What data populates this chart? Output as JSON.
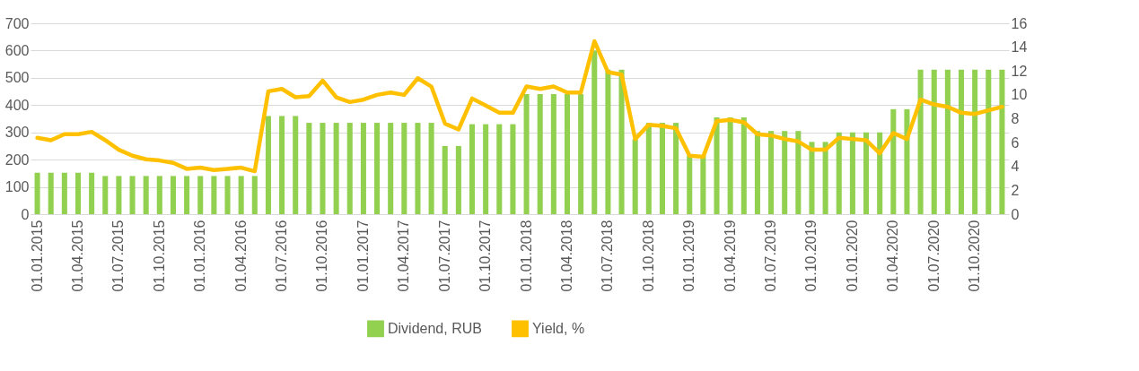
{
  "chart_data": {
    "type": "bar",
    "categories": [
      "01.01.2015",
      null,
      null,
      "01.04.2015",
      null,
      null,
      "01.07.2015",
      null,
      null,
      "01.10.2015",
      null,
      null,
      "01.01.2016",
      null,
      null,
      "01.04.2016",
      null,
      null,
      "01.07.2016",
      null,
      null,
      "01.10.2016",
      null,
      null,
      "01.01.2017",
      null,
      null,
      "01.04.2017",
      null,
      null,
      "01.07.2017",
      null,
      null,
      "01.10.2017",
      null,
      null,
      "01.01.2018",
      null,
      null,
      "01.04.2018",
      null,
      null,
      "01.07.2018",
      null,
      null,
      "01.10.2018",
      null,
      null,
      "01.01.2019",
      null,
      null,
      "01.04.2019",
      null,
      null,
      "01.07.2019",
      null,
      null,
      "01.10.2019",
      null,
      null,
      "01.01.2020",
      null,
      null,
      "01.04.2020",
      null,
      null,
      "01.07.2020",
      null,
      null,
      "01.10.2020",
      null,
      null
    ],
    "series": [
      {
        "name": "Dividend, RUB",
        "color": "#92d050",
        "values": [
          152,
          152,
          152,
          152,
          152,
          140,
          140,
          140,
          140,
          140,
          140,
          140,
          140,
          140,
          140,
          140,
          140,
          360,
          360,
          360,
          335,
          335,
          335,
          335,
          335,
          335,
          335,
          335,
          335,
          335,
          250,
          250,
          330,
          330,
          330,
          330,
          440,
          440,
          440,
          440,
          440,
          600,
          530,
          530,
          275,
          335,
          335,
          335,
          215,
          215,
          355,
          355,
          355,
          305,
          305,
          305,
          305,
          265,
          265,
          300,
          300,
          300,
          300,
          385,
          385,
          530,
          530,
          530,
          530,
          530,
          530,
          530
        ]
      },
      {
        "name": "Yield, %",
        "type": "line",
        "axis": "y2",
        "color": "#ffc000",
        "values": [
          6.4,
          6.2,
          6.7,
          6.7,
          6.9,
          6.2,
          5.4,
          4.9,
          4.6,
          4.5,
          4.3,
          3.8,
          3.9,
          3.7,
          3.8,
          3.9,
          3.6,
          10.3,
          10.5,
          9.8,
          9.9,
          11.2,
          9.8,
          9.4,
          9.6,
          10.0,
          10.2,
          10.0,
          11.4,
          10.7,
          7.6,
          7.1,
          9.7,
          9.1,
          8.5,
          8.5,
          10.7,
          10.5,
          10.7,
          10.2,
          10.2,
          14.5,
          11.9,
          11.7,
          6.3,
          7.5,
          7.4,
          7.2,
          4.9,
          4.8,
          7.8,
          7.9,
          7.7,
          6.7,
          6.6,
          6.3,
          6.1,
          5.4,
          5.4,
          6.4,
          6.3,
          6.2,
          5.1,
          6.8,
          6.3,
          9.6,
          9.2,
          9.0,
          8.5,
          8.4,
          8.7,
          9.0
        ]
      }
    ],
    "ylim": [
      0,
      700
    ],
    "yticks": [
      0,
      100,
      200,
      300,
      400,
      500,
      600,
      700
    ],
    "y2lim": [
      0,
      16
    ],
    "y2ticks": [
      0,
      2,
      4,
      6,
      8,
      10,
      12,
      14,
      16
    ],
    "grid": "y",
    "legend": "bottom",
    "line_style": "solid"
  }
}
